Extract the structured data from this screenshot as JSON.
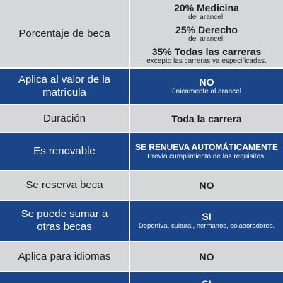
{
  "rows": [
    {
      "label": "Porcentaje de beca",
      "values": [
        {
          "main": "20% Medicina",
          "sub": "del arancel."
        },
        {
          "main": "25% Derecho",
          "sub": "del arancel."
        },
        {
          "main": "35% Todas las carreras",
          "sub": "excepto las carreras ya especificadas."
        }
      ]
    },
    {
      "label": "Aplica al valor de la matrícula",
      "main": "NO",
      "sub": "únicamente al arancel"
    },
    {
      "label": "Duración",
      "main": "Toda la carrera"
    },
    {
      "label": "Es renovable",
      "main": "SE RENUEVA AUTOMÁTICAMENTE",
      "sub": "Previo cumplimiento de los requisitos."
    },
    {
      "label": "Se reserva beca",
      "main": "NO"
    },
    {
      "label": "Se puede sumar a otras becas",
      "main": "SI",
      "sub": "Deportiva, cultural, hermanos, colaboradores."
    },
    {
      "label": "Aplica para idiomas",
      "main": "NO"
    },
    {
      "label": "",
      "main": "SI"
    }
  ],
  "colors": {
    "gray_row": "#d6d7d9",
    "blue_row": "#1a4589",
    "divider": "#ffffff"
  }
}
